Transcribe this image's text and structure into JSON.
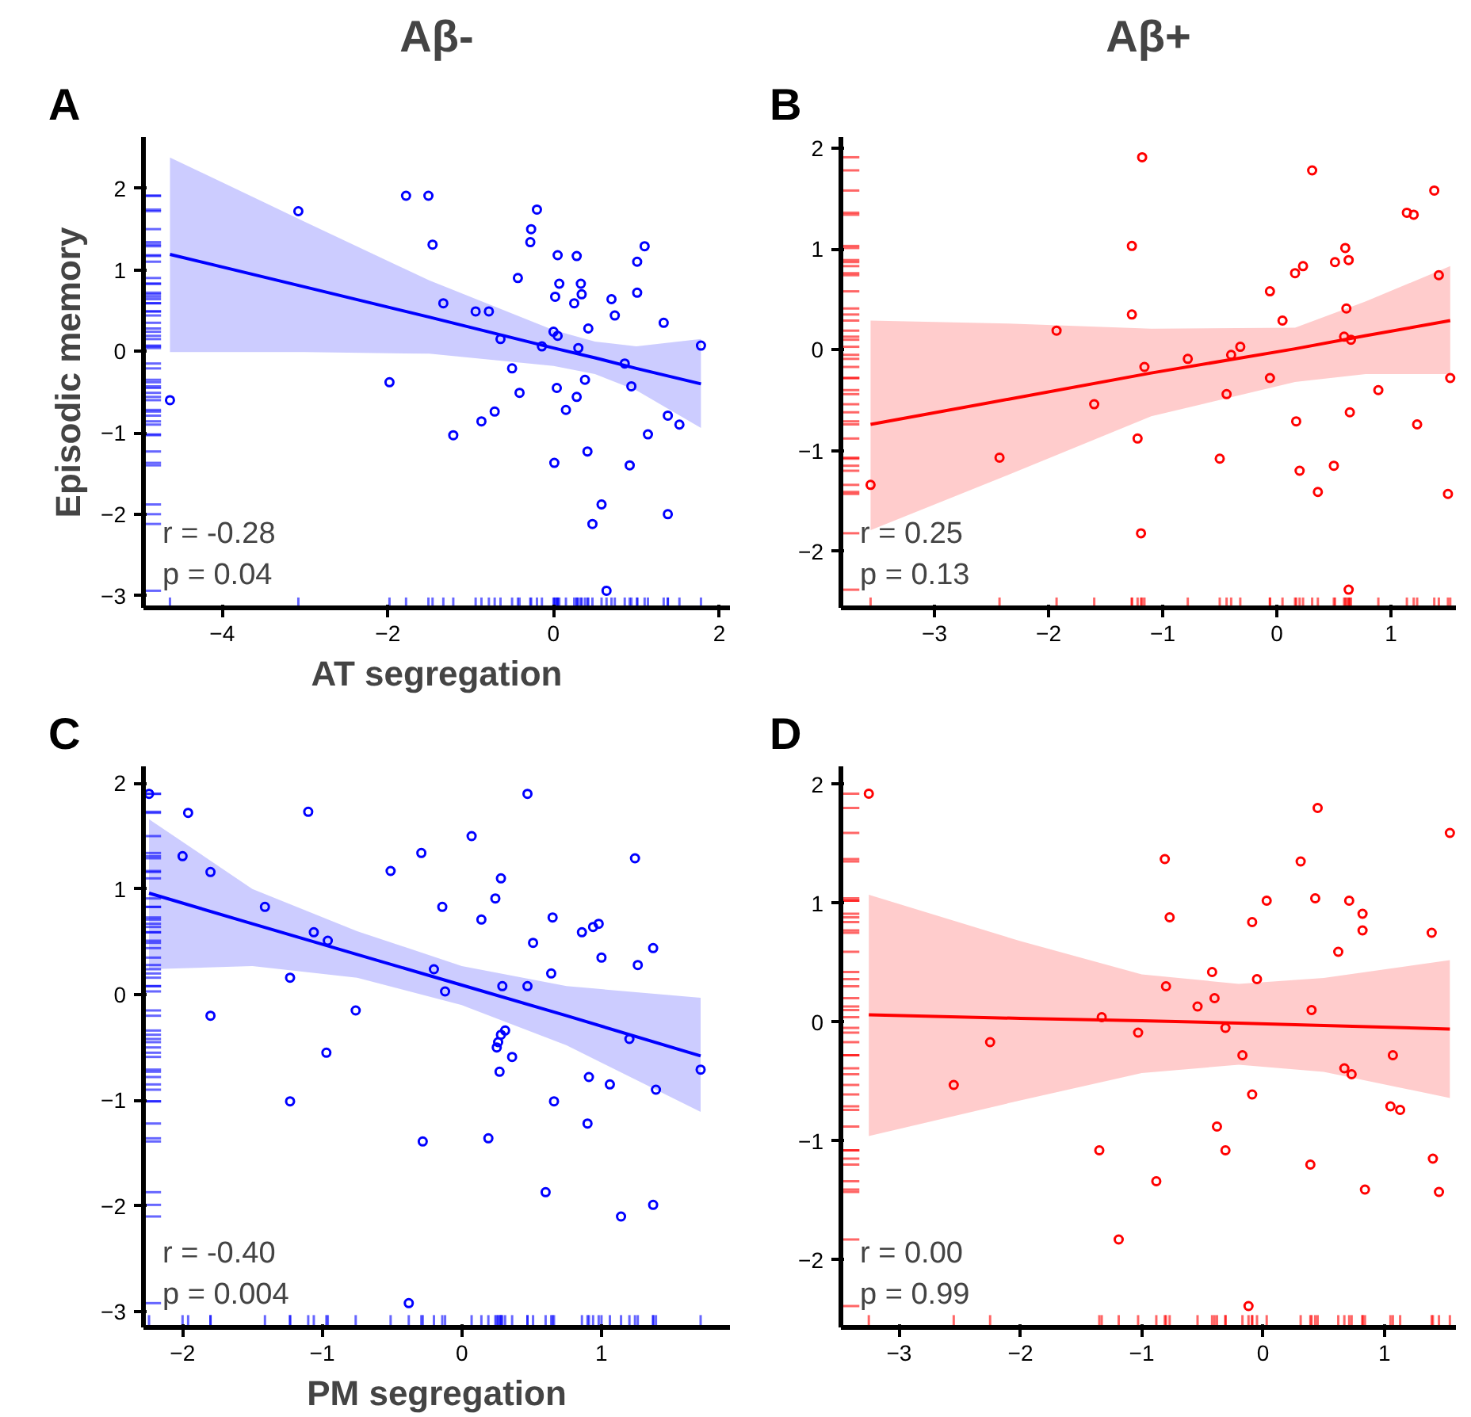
{
  "chart_data": [
    {
      "type": "scatter",
      "title": "Aβ-",
      "xlabel": "AT segregation",
      "ylabel": "Episodic memory",
      "annotations": [
        "A",
        "r = -0.28",
        "p = 0.04"
      ],
      "xlim": [
        -4.95,
        2.13
      ],
      "ylim": [
        -3.15,
        2.63
      ],
      "xticks": [
        -4,
        -2,
        0,
        2
      ],
      "yticks": [
        -3,
        -2,
        -1,
        0,
        1,
        2
      ],
      "series": [
        {
          "marker": "circle",
          "color": "#0000ff",
          "x": [
            -4.63,
            -3.08,
            -1.78,
            -1.51,
            -1.46,
            -1.98,
            -1.21,
            -1.33,
            -0.94,
            -0.78,
            -0.64,
            -0.87,
            -0.71,
            -0.5,
            -0.41,
            -0.43,
            -0.27,
            -0.28,
            -0.2,
            0.05,
            0.28,
            0.07,
            0.02,
            0.33,
            0.34,
            0.25,
            0.0,
            0.05,
            -0.14,
            0.42,
            0.3,
            0.04,
            0.38,
            0.28,
            0.15,
            0.01,
            0.41,
            0.58,
            0.47,
            0.64,
            0.7,
            0.74,
            1.01,
            1.1,
            1.01,
            1.33,
            0.86,
            0.94,
            1.14,
            1.38,
            1.52,
            0.92,
            1.38,
            1.78
          ],
          "values": [
            -0.6,
            1.72,
            1.91,
            1.91,
            1.31,
            -0.38,
            -1.03,
            0.59,
            0.49,
            0.49,
            0.15,
            -0.86,
            -0.74,
            -0.21,
            -0.51,
            0.9,
            1.5,
            1.34,
            1.74,
            1.18,
            1.17,
            0.83,
            0.67,
            0.83,
            0.7,
            0.59,
            0.24,
            0.19,
            0.06,
            0.28,
            0.04,
            -0.45,
            -0.35,
            -0.56,
            -0.72,
            -1.37,
            -1.23,
            -1.88,
            -2.12,
            -2.94,
            0.64,
            0.44,
            1.1,
            1.29,
            0.72,
            0.35,
            -0.15,
            -0.43,
            -1.02,
            -0.79,
            -0.9,
            -1.4,
            -2.0,
            0.07
          ]
        },
        {
          "type": "line",
          "color": "#0000ff",
          "x": [
            -4.63,
            -3,
            -1.5,
            0,
            0.5,
            1,
            1.78
          ],
          "values": [
            1.19,
            0.79,
            0.42,
            0.04,
            -0.08,
            -0.21,
            -0.4
          ],
          "lower": [
            -0.01,
            -0.01,
            -0.03,
            -0.18,
            -0.28,
            -0.48,
            -0.94
          ],
          "upper": [
            2.38,
            1.59,
            0.87,
            0.26,
            0.12,
            0.06,
            0.15
          ]
        }
      ]
    },
    {
      "type": "scatter",
      "title": "Aβ+",
      "annotations": [
        "B",
        "r = 0.25",
        "p = 0.13"
      ],
      "xlim": [
        -3.82,
        1.57
      ],
      "ylim": [
        -2.56,
        2.11
      ],
      "xticks": [
        -3,
        -2,
        -1,
        0,
        1
      ],
      "yticks": [
        -2,
        -1,
        0,
        1,
        2
      ],
      "series": [
        {
          "marker": "circle",
          "color": "#ff0000",
          "x": [
            -3.56,
            -2.43,
            -1.93,
            -1.6,
            -1.27,
            -1.27,
            -1.18,
            -1.16,
            -1.22,
            -1.19,
            -0.78,
            -0.5,
            -0.44,
            -0.4,
            -0.32,
            -0.06,
            0.05,
            -0.06,
            0.16,
            0.23,
            0.17,
            0.2,
            0.31,
            0.36,
            0.5,
            0.51,
            0.6,
            0.63,
            0.61,
            0.59,
            0.65,
            0.64,
            0.63,
            0.89,
            1.14,
            1.2,
            1.38,
            1.42,
            1.23,
            1.52,
            1.5
          ],
          "values": [
            -1.34,
            -1.07,
            0.19,
            -0.54,
            0.35,
            1.03,
            1.91,
            -0.17,
            -0.88,
            -1.82,
            -0.09,
            -1.08,
            -0.44,
            -0.05,
            0.03,
            0.58,
            0.29,
            -0.28,
            0.76,
            0.83,
            -0.71,
            -1.2,
            1.78,
            -1.41,
            -1.15,
            0.87,
            1.01,
            0.89,
            0.41,
            0.13,
            0.1,
            -0.62,
            -2.38,
            -0.4,
            1.36,
            1.34,
            1.58,
            0.74,
            -0.74,
            -0.28,
            -1.43
          ]
        },
        {
          "type": "line",
          "color": "#ff0000",
          "x": [
            -3.56,
            -2.35,
            -1.1,
            0.16,
            0.78,
            1.52
          ],
          "values": [
            -0.74,
            -0.49,
            -0.23,
            0.01,
            0.14,
            0.29
          ],
          "lower": [
            -1.79,
            -1.24,
            -0.66,
            -0.32,
            -0.24,
            -0.24
          ],
          "upper": [
            0.29,
            0.26,
            0.21,
            0.22,
            0.48,
            0.83
          ]
        }
      ]
    },
    {
      "type": "scatter",
      "xlabel": "PM segregation",
      "annotations": [
        "C",
        "r = -0.40",
        "p = 0.004"
      ],
      "xlim": [
        -2.28,
        1.92
      ],
      "ylim": [
        -3.15,
        2.16
      ],
      "xticks": [
        -2,
        -1,
        0,
        1
      ],
      "yticks": [
        -3,
        -2,
        -1,
        0,
        1,
        2
      ],
      "series": [
        {
          "marker": "circle",
          "color": "#0000ff",
          "x": [
            -2.24,
            -1.96,
            -2.0,
            -1.8,
            -1.8,
            -1.41,
            -1.23,
            -1.23,
            -1.1,
            -1.06,
            -0.96,
            -0.97,
            -0.76,
            -0.51,
            -0.38,
            -0.29,
            -0.28,
            -0.2,
            -0.14,
            -0.12,
            0.07,
            0.14,
            0.19,
            0.24,
            0.28,
            0.29,
            0.31,
            0.28,
            0.26,
            0.25,
            0.36,
            0.27,
            0.47,
            0.47,
            0.51,
            0.6,
            0.64,
            0.65,
            0.66,
            0.86,
            0.91,
            0.9,
            0.94,
            0.98,
            1.0,
            1.06,
            1.14,
            1.2,
            1.24,
            1.26,
            1.37,
            1.39,
            1.37,
            1.71
          ],
          "values": [
            1.9,
            1.72,
            1.31,
            1.16,
            -0.2,
            0.83,
            0.16,
            -1.01,
            1.73,
            0.59,
            0.51,
            -0.55,
            -0.15,
            1.17,
            -2.92,
            1.34,
            -1.39,
            0.24,
            0.83,
            0.03,
            1.5,
            0.71,
            -1.36,
            0.91,
            1.1,
            0.08,
            -0.34,
            -0.38,
            -0.45,
            -0.5,
            -0.59,
            -0.73,
            1.9,
            0.08,
            0.49,
            -1.87,
            0.2,
            0.73,
            -1.01,
            0.59,
            -0.78,
            -1.22,
            0.64,
            0.67,
            0.35,
            -0.85,
            -2.1,
            -0.42,
            1.29,
            0.28,
            0.44,
            -0.9,
            -1.99,
            -0.71
          ]
        },
        {
          "type": "line",
          "color": "#0000ff",
          "x": [
            -2.24,
            -1.5,
            -0.75,
            0,
            0.75,
            1.71
          ],
          "values": [
            0.96,
            0.67,
            0.38,
            0.09,
            -0.2,
            -0.58
          ],
          "lower": [
            0.24,
            0.27,
            0.16,
            -0.1,
            -0.48,
            -1.11
          ],
          "upper": [
            1.66,
            1.0,
            0.6,
            0.27,
            0.08,
            -0.03
          ]
        }
      ]
    },
    {
      "type": "scatter",
      "annotations": [
        "D",
        "r = 0.00",
        "p = 0.99"
      ],
      "xlim": [
        -3.48,
        1.59
      ],
      "ylim": [
        -2.57,
        2.15
      ],
      "xticks": [
        -3,
        -2,
        -1,
        0,
        1
      ],
      "yticks": [
        -2,
        -1,
        0,
        1,
        2
      ],
      "series": [
        {
          "marker": "circle",
          "color": "#ff0000",
          "x": [
            -3.25,
            -2.55,
            -2.25,
            -1.35,
            -1.33,
            -1.19,
            -1.03,
            -0.88,
            -0.81,
            -0.77,
            -0.8,
            -0.54,
            -0.42,
            -0.4,
            -0.38,
            -0.31,
            -0.31,
            -0.17,
            -0.09,
            -0.09,
            -0.05,
            -0.12,
            0.03,
            0.31,
            0.4,
            0.39,
            0.45,
            0.43,
            0.62,
            0.67,
            0.71,
            0.73,
            0.82,
            0.82,
            0.84,
            1.05,
            1.07,
            1.13,
            1.39,
            1.4,
            1.45,
            1.54
          ],
          "values": [
            1.92,
            -0.53,
            -0.17,
            -1.08,
            0.04,
            -1.83,
            -0.09,
            -1.34,
            1.37,
            0.88,
            0.3,
            0.13,
            0.42,
            0.2,
            -0.88,
            -1.08,
            -0.05,
            -0.28,
            -0.61,
            0.84,
            0.36,
            -2.39,
            1.02,
            1.35,
            0.1,
            -1.2,
            1.8,
            1.04,
            0.59,
            -0.39,
            1.02,
            -0.44,
            0.91,
            0.77,
            -1.41,
            -0.71,
            -0.28,
            -0.74,
            0.75,
            -1.15,
            -1.43,
            1.59
          ]
        },
        {
          "type": "line",
          "color": "#ff0000",
          "x": [
            -3.25,
            -2,
            -1,
            -0.2,
            0.5,
            1.54
          ],
          "values": [
            0.06,
            0.03,
            0.01,
            -0.01,
            -0.03,
            -0.06
          ],
          "lower": [
            -0.96,
            -0.66,
            -0.43,
            -0.36,
            -0.42,
            -0.64
          ],
          "upper": [
            1.07,
            0.68,
            0.4,
            0.32,
            0.37,
            0.52
          ]
        }
      ]
    }
  ]
}
